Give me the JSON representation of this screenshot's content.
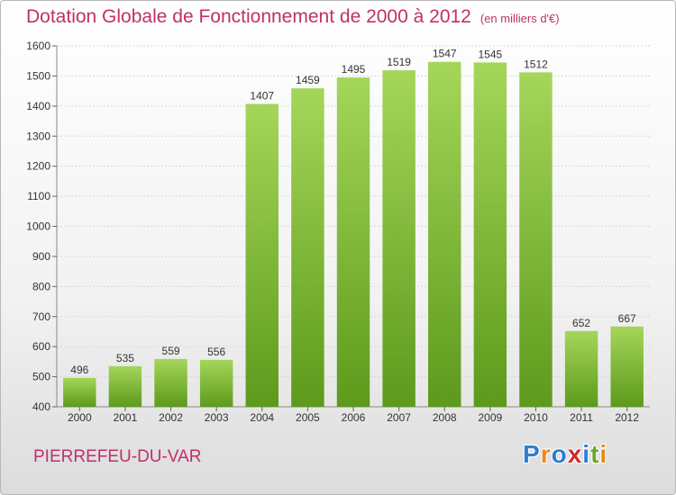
{
  "title": "Dotation Globale de Fonctionnement de 2000 à 2012",
  "unit": "(en milliers d'€)",
  "commune": "PIERREFEU-DU-VAR",
  "logo": {
    "letters": [
      "P",
      "r",
      "o",
      "x",
      "i",
      "t",
      "i"
    ],
    "colors": [
      "#2e7fcf",
      "#e8891a",
      "#2e7fcf",
      "#d02a2a",
      "#2e7fcf",
      "#6aa82a",
      "#e8891a"
    ]
  },
  "colors": {
    "bar_top": "#a4d65a",
    "bar_bottom": "#5d9a1c",
    "title": "#c0306a"
  },
  "chart_data": {
    "type": "bar",
    "title": "Dotation Globale de Fonctionnement de 2000 à 2012",
    "subtitle": "(en milliers d'€)",
    "xlabel": "",
    "ylabel": "",
    "categories": [
      "2000",
      "2001",
      "2002",
      "2003",
      "2004",
      "2005",
      "2006",
      "2007",
      "2008",
      "2009",
      "2010",
      "2011",
      "2012"
    ],
    "values": [
      496,
      535,
      559,
      556,
      1407,
      1459,
      1495,
      1519,
      1547,
      1545,
      1512,
      652,
      667
    ],
    "ylim": [
      400,
      1600
    ],
    "yticks": [
      400,
      500,
      600,
      700,
      800,
      900,
      1000,
      1100,
      1200,
      1300,
      1400,
      1500,
      1600
    ],
    "grid": true,
    "legend": "none"
  }
}
